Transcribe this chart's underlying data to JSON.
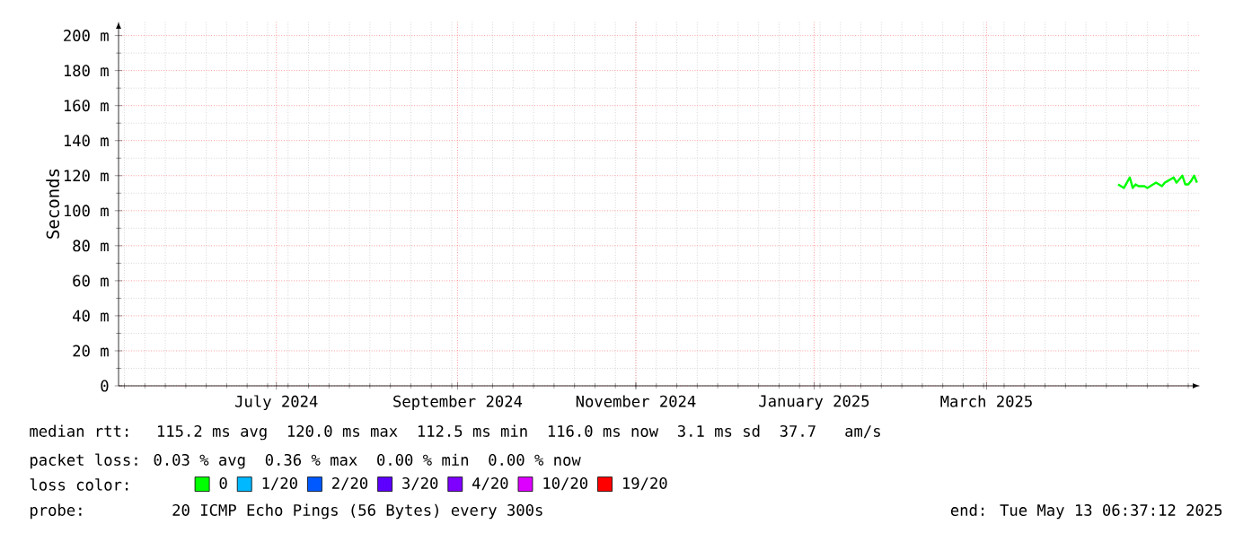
{
  "chart_data": {
    "type": "line",
    "ylabel": "Seconds",
    "x": [
      "2025-04-15",
      "2025-04-16",
      "2025-04-17",
      "2025-04-18",
      "2025-04-19",
      "2025-04-20",
      "2025-04-21",
      "2025-04-22",
      "2025-04-24",
      "2025-04-25",
      "2025-04-27",
      "2025-04-28",
      "2025-04-30",
      "2025-05-01",
      "2025-05-02",
      "2025-05-03",
      "2025-05-04",
      "2025-05-05",
      "2025-05-06",
      "2025-05-07",
      "2025-05-08",
      "2025-05-09",
      "2025-05-10",
      "2025-05-11",
      "2025-05-12"
    ],
    "series": [
      {
        "name": "0",
        "color": "#00ff00",
        "values": [
          115,
          114,
          113,
          116,
          119,
          113,
          115,
          114,
          114,
          113,
          115,
          116,
          114,
          116,
          117,
          118,
          119,
          116,
          118,
          120,
          115,
          115,
          117,
          120,
          116
        ]
      },
      {
        "name": "1/20",
        "color": "#00b8ff",
        "values": [
          null,
          null,
          null,
          null,
          null,
          null,
          null,
          null,
          null,
          null,
          null,
          null,
          null,
          null,
          null,
          null,
          null,
          null,
          null,
          null,
          null,
          null,
          null,
          null,
          null
        ]
      },
      {
        "name": "2/20",
        "color": "#0059ff",
        "values": [
          null,
          null,
          null,
          null,
          null,
          null,
          null,
          null,
          null,
          null,
          null,
          null,
          null,
          null,
          null,
          null,
          null,
          null,
          null,
          null,
          null,
          null,
          null,
          null,
          null
        ]
      },
      {
        "name": "3/20",
        "color": "#5e00ff",
        "values": [
          null,
          null,
          null,
          null,
          null,
          null,
          null,
          null,
          null,
          null,
          null,
          null,
          null,
          null,
          null,
          null,
          null,
          null,
          null,
          null,
          null,
          null,
          null,
          null,
          null
        ]
      },
      {
        "name": "4/20",
        "color": "#7e00ff",
        "values": [
          null,
          null,
          null,
          null,
          null,
          null,
          null,
          null,
          null,
          null,
          null,
          null,
          null,
          null,
          null,
          null,
          null,
          null,
          null,
          null,
          null,
          null,
          null,
          null,
          null
        ]
      },
      {
        "name": "10/20",
        "color": "#dd00ff",
        "values": [
          null,
          null,
          null,
          null,
          null,
          null,
          null,
          null,
          null,
          null,
          null,
          null,
          null,
          null,
          null,
          null,
          null,
          null,
          null,
          null,
          null,
          null,
          null,
          null,
          null
        ]
      },
      {
        "name": "19/20",
        "color": "#ff0000",
        "values": [
          null,
          null,
          null,
          null,
          null,
          null,
          null,
          null,
          null,
          null,
          null,
          null,
          null,
          null,
          null,
          null,
          null,
          null,
          null,
          null,
          null,
          null,
          null,
          null,
          null
        ]
      }
    ],
    "legend_title": "loss color:",
    "legend": "bottom",
    "grid": true,
    "line_style": "solid",
    "xlim": [
      "2024-05-08",
      "2025-05-13"
    ],
    "xticks": [
      {
        "value": "2024-07-01",
        "label": "July 2024"
      },
      {
        "value": "2024-09-01",
        "label": "September 2024"
      },
      {
        "value": "2024-11-01",
        "label": "November 2024"
      },
      {
        "value": "2025-01-01",
        "label": "January 2025"
      },
      {
        "value": "2025-03-01",
        "label": "March 2025"
      }
    ],
    "ylim": [
      0,
      208
    ],
    "yticks": [
      {
        "value": 0,
        "label": "0"
      },
      {
        "value": 20,
        "label": "20 m"
      },
      {
        "value": 40,
        "label": "40 m"
      },
      {
        "value": 60,
        "label": "60 m"
      },
      {
        "value": 80,
        "label": "80 m"
      },
      {
        "value": 100,
        "label": "100 m"
      },
      {
        "value": 120,
        "label": "120 m"
      },
      {
        "value": 140,
        "label": "140 m"
      },
      {
        "value": 160,
        "label": "160 m"
      },
      {
        "value": 180,
        "label": "180 m"
      },
      {
        "value": 200,
        "label": "200 m"
      }
    ],
    "annotations": [
      "median rtt:  115.2 ms avg  120.0 ms max  112.5 ms min  116.0 ms now  3.1 ms sd  37.7   am/s",
      "packet loss: 0.03 % avg  0.36 % max  0.00 % min  0.00 % now",
      "probe:       20 ICMP Echo Pings (56 Bytes) every 300s",
      "end: Tue May 13 06:37:12 2025"
    ]
  }
}
